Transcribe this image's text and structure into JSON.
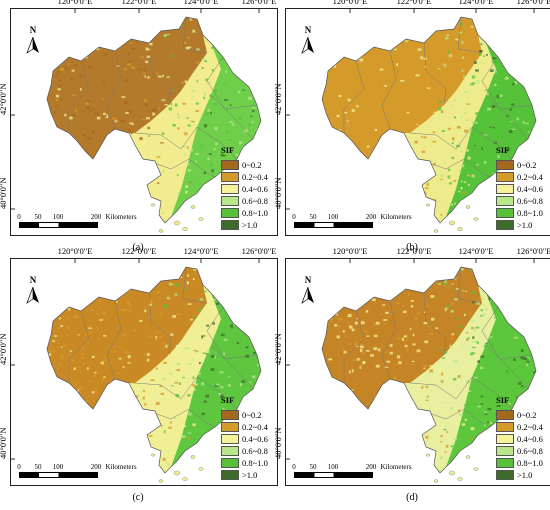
{
  "longitude_ticks": [
    "120°0'0\"E",
    "122°0'0\"E",
    "124°0'0\"E",
    "126°0'0\"E"
  ],
  "latitude_ticks": [
    "42°0'0\"N",
    "40°0'0\"N"
  ],
  "north_label": "N",
  "legend": {
    "title": "SIF",
    "classes": [
      {
        "label": "0~0.2",
        "color": "#a5681f"
      },
      {
        "label": "0.2~0.4",
        "color": "#d49a2a"
      },
      {
        "label": "0.4~0.6",
        "color": "#f4f29a"
      },
      {
        "label": "0.6~0.8",
        "color": "#b9e88a"
      },
      {
        "label": "0.8~1.0",
        "color": "#55c23a"
      },
      {
        "label": ">1.0",
        "color": "#3d6b2a"
      }
    ]
  },
  "scale_bar": {
    "labels": [
      "0",
      "50",
      "100",
      "200"
    ],
    "unit": "Kilometers"
  },
  "panels": [
    {
      "caption": "(a)",
      "dominant": "#b47a2c",
      "mid": "#f2ec8e",
      "high": "#6fcf4a"
    },
    {
      "caption": "(b)",
      "dominant": "#d49a2a",
      "mid": "#eeeb8c",
      "high": "#55c23a"
    },
    {
      "caption": "(c)",
      "dominant": "#c98a26",
      "mid": "#f1ef95",
      "high": "#5fc640"
    },
    {
      "caption": "(d)",
      "dominant": "#c58526",
      "mid": "#e8f0a0",
      "high": "#5cc63c"
    }
  ]
}
